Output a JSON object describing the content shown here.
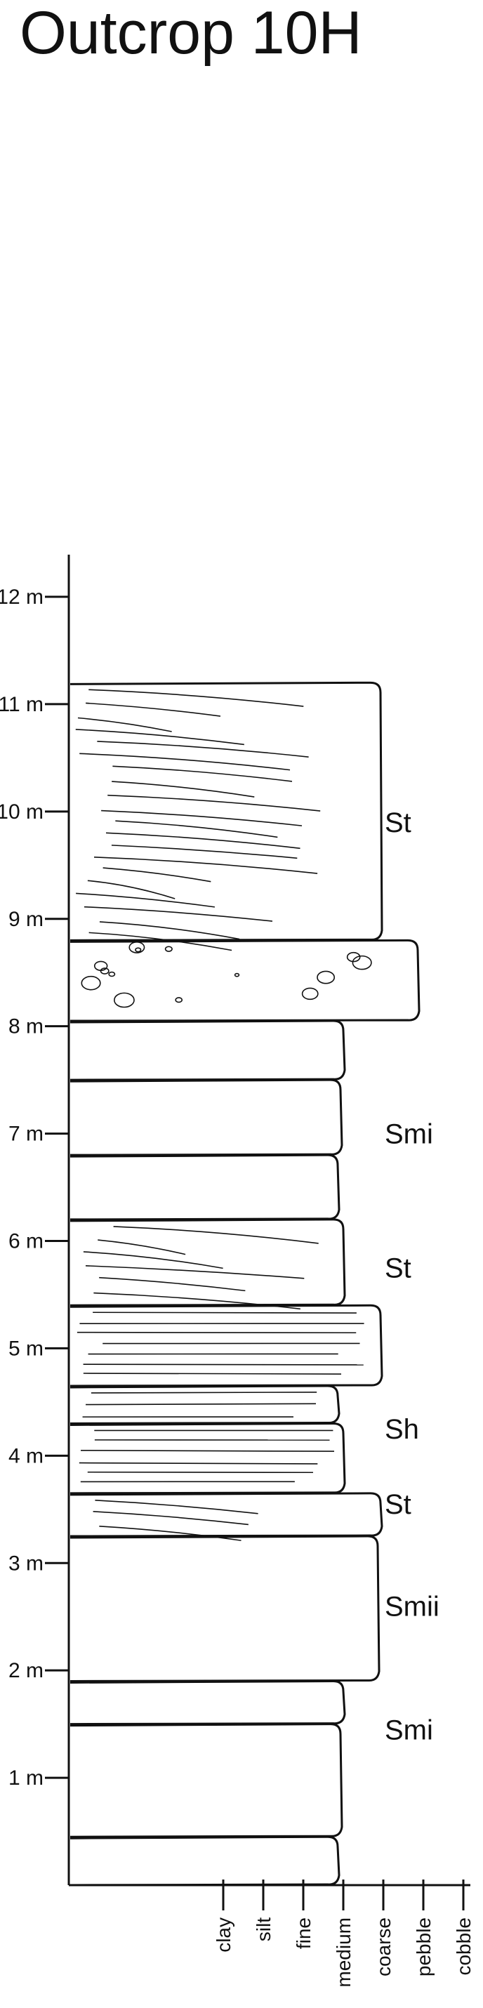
{
  "title": "Outcrop 10H",
  "colors": {
    "ink": "#111111",
    "background": "#ffffff"
  },
  "depth_unit": "m",
  "depth_axis": {
    "min": 0,
    "max": 12,
    "ticks": [
      {
        "value": 1,
        "label": "1 m"
      },
      {
        "value": 2,
        "label": "2 m"
      },
      {
        "value": 3,
        "label": "3 m"
      },
      {
        "value": 4,
        "label": "4 m"
      },
      {
        "value": 5,
        "label": "5 m"
      },
      {
        "value": 6,
        "label": "6 m"
      },
      {
        "value": 7,
        "label": "7 m"
      },
      {
        "value": 8,
        "label": "8 m"
      },
      {
        "value": 9,
        "label": "9 m"
      },
      {
        "value": 10,
        "label": "10 m"
      },
      {
        "value": 11,
        "label": "11 m"
      },
      {
        "value": 12,
        "label": "12 m"
      }
    ]
  },
  "grain_size_scale": [
    "clay",
    "silt",
    "fine",
    "medium",
    "coarse",
    "pebble",
    "cobble"
  ],
  "beds": [
    {
      "bottom": 0.0,
      "top": 0.45,
      "grain": "medium",
      "pattern": "massive"
    },
    {
      "bottom": 0.45,
      "top": 1.5,
      "grain": "medium",
      "pattern": "massive"
    },
    {
      "bottom": 1.5,
      "top": 1.9,
      "grain": "medium",
      "pattern": "massive"
    },
    {
      "bottom": 1.9,
      "top": 3.25,
      "grain": "coarse",
      "pattern": "massive"
    },
    {
      "bottom": 3.25,
      "top": 3.65,
      "grain": "coarse",
      "pattern": "trough"
    },
    {
      "bottom": 3.65,
      "top": 4.3,
      "grain": "medium",
      "pattern": "horizontal"
    },
    {
      "bottom": 4.3,
      "top": 4.65,
      "grain": "medium",
      "pattern": "horizontal"
    },
    {
      "bottom": 4.65,
      "top": 5.4,
      "grain": "coarse",
      "pattern": "horizontal"
    },
    {
      "bottom": 5.4,
      "top": 6.2,
      "grain": "medium",
      "pattern": "trough"
    },
    {
      "bottom": 6.2,
      "top": 6.8,
      "grain": "medium",
      "pattern": "massive"
    },
    {
      "bottom": 6.8,
      "top": 7.5,
      "grain": "medium",
      "pattern": "massive"
    },
    {
      "bottom": 7.5,
      "top": 8.05,
      "grain": "medium",
      "pattern": "massive"
    },
    {
      "bottom": 8.05,
      "top": 8.8,
      "grain": "pebble",
      "pattern": "clasts"
    },
    {
      "bottom": 8.8,
      "top": 11.2,
      "grain": "coarse",
      "pattern": "trough"
    }
  ],
  "facies_labels": [
    {
      "text": "Smi",
      "depth": 1.45
    },
    {
      "text": "Smii",
      "depth": 2.6
    },
    {
      "text": "St",
      "depth": 3.55
    },
    {
      "text": "Sh",
      "depth": 4.25
    },
    {
      "text": "St",
      "depth": 5.75
    },
    {
      "text": "Smi",
      "depth": 7.0
    },
    {
      "text": "St",
      "depth": 9.9
    }
  ]
}
